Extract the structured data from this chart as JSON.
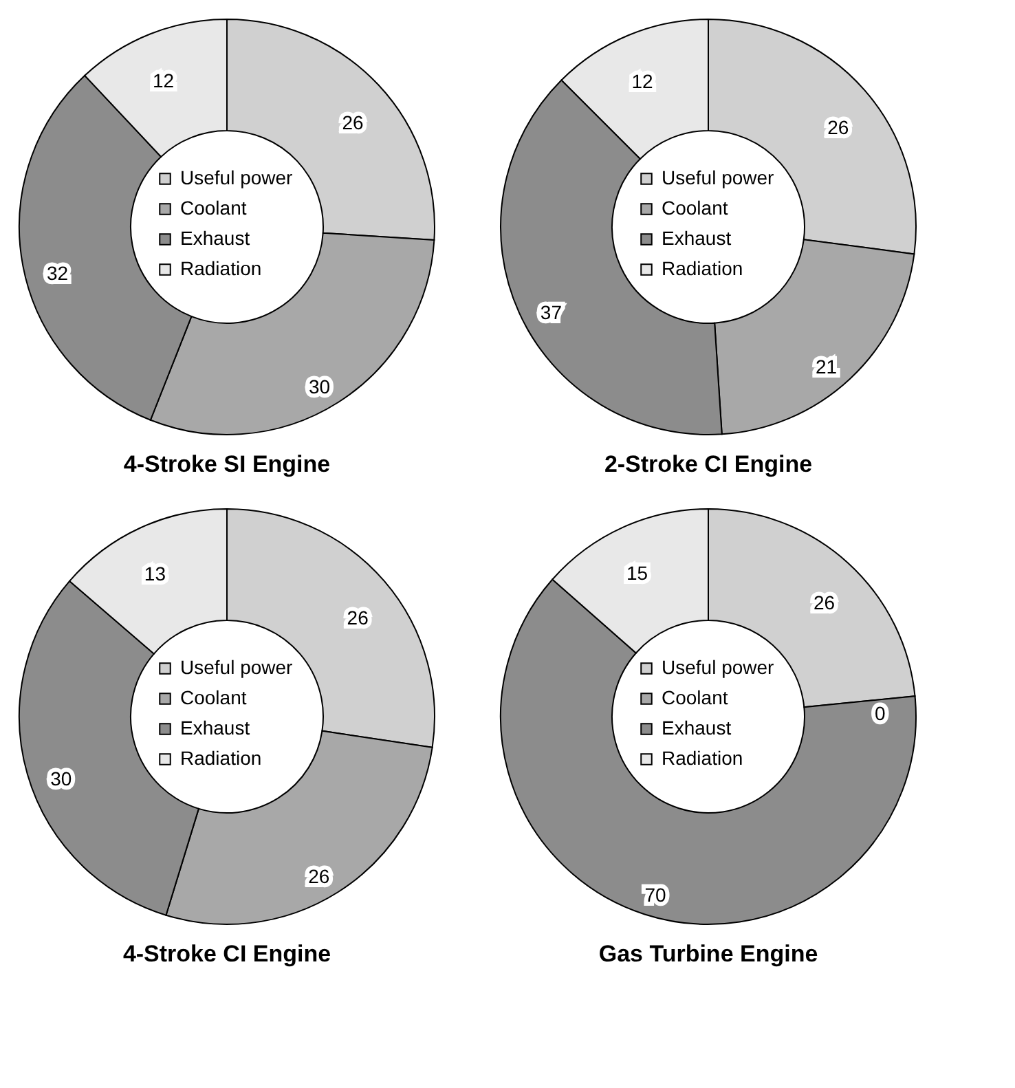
{
  "chart_data": [
    {
      "type": "donut",
      "title": "4-Stroke SI Engine",
      "categories": [
        "Useful power",
        "Coolant",
        "Exhaust",
        "Radiation"
      ],
      "values": [
        26,
        30,
        32,
        12
      ],
      "value_labels": [
        "26",
        "30",
        "32",
        "12"
      ],
      "colors": [
        "#d0d0d0",
        "#a8a8a8",
        "#8c8c8c",
        "#e8e8e8"
      ],
      "legend": "center"
    },
    {
      "type": "donut",
      "title": "2-Stroke CI Engine",
      "categories": [
        "Useful power",
        "Coolant",
        "Exhaust",
        "Radiation"
      ],
      "values": [
        26,
        21,
        37,
        12
      ],
      "value_labels": [
        "26",
        "21",
        "37",
        "12"
      ],
      "colors": [
        "#d0d0d0",
        "#a8a8a8",
        "#8c8c8c",
        "#e8e8e8"
      ],
      "legend": "center"
    },
    {
      "type": "donut",
      "title": "4-Stroke CI Engine",
      "categories": [
        "Useful power",
        "Coolant",
        "Exhaust",
        "Radiation"
      ],
      "values": [
        26,
        26,
        30,
        13
      ],
      "value_labels": [
        "26",
        "26",
        "30",
        "13"
      ],
      "colors": [
        "#d0d0d0",
        "#a8a8a8",
        "#8c8c8c",
        "#e8e8e8"
      ],
      "legend": "center"
    },
    {
      "type": "donut",
      "title": "Gas Turbine Engine",
      "categories": [
        "Useful power",
        "Coolant",
        "Exhaust",
        "Radiation"
      ],
      "values": [
        26,
        0,
        70,
        15
      ],
      "value_labels": [
        "26",
        "0",
        "70",
        "15"
      ],
      "colors": [
        "#d0d0d0",
        "#a8a8a8",
        "#8c8c8c",
        "#e8e8e8"
      ],
      "legend": "center"
    }
  ]
}
